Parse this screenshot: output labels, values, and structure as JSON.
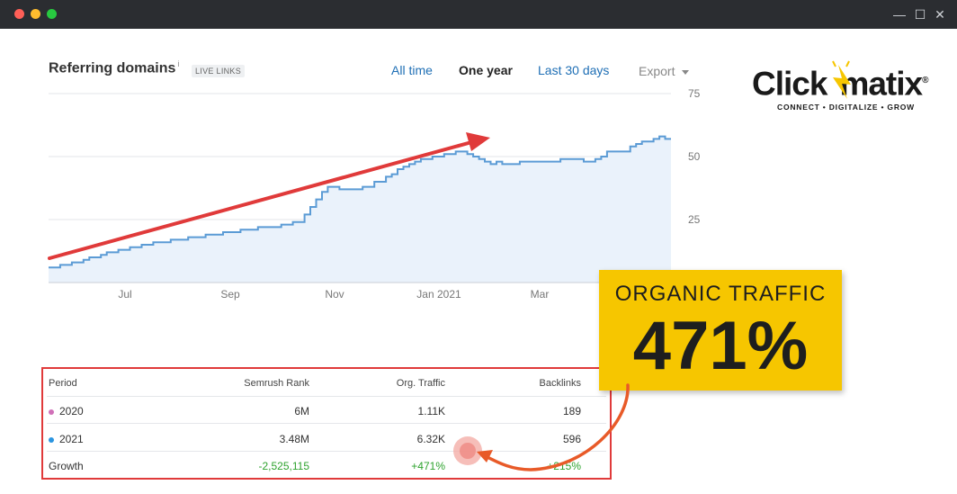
{
  "window": {
    "controls": {
      "minimize": "—",
      "maximize": "☐",
      "close": "✕"
    }
  },
  "card": {
    "title": "Referring domains",
    "info_mark": "i",
    "badge": "LIVE LINKS",
    "ranges": [
      {
        "label": "All time",
        "active": false
      },
      {
        "label": "One year",
        "active": true
      },
      {
        "label": "Last 30 days",
        "active": false
      }
    ],
    "export_label": "Export"
  },
  "logo": {
    "word_left": "Click",
    "word_right": "matix",
    "reg": "®",
    "tagline": "CONNECT • DIGITALIZE • GROW"
  },
  "highlight": {
    "label": "ORGANIC TRAFFIC",
    "value": "471%"
  },
  "colors": {
    "line": "#5b9bd5",
    "area": "#eaf2fb",
    "arrow": "#e03a3a",
    "highlight_bg": "#f6c600",
    "growth": "#2fa32f"
  },
  "chart_data": {
    "type": "area",
    "title": "Referring domains",
    "x_tick_labels": [
      "Jul",
      "Sep",
      "Nov",
      "Jan 2021",
      "Mar"
    ],
    "y_tick_labels": [
      "75",
      "50",
      "25"
    ],
    "ylim": [
      0,
      75
    ],
    "grid": true,
    "series": [
      {
        "values": [
          6,
          6,
          7,
          7,
          8,
          8,
          9,
          10,
          10,
          11,
          12,
          12,
          13,
          13,
          14,
          14,
          15,
          15,
          16,
          16,
          16,
          17,
          17,
          17,
          18,
          18,
          18,
          19,
          19,
          19,
          20,
          20,
          20,
          21,
          21,
          21,
          22,
          22,
          22,
          22,
          23,
          23,
          24,
          24,
          27,
          30,
          33,
          36,
          38,
          38,
          37,
          37,
          37,
          37,
          38,
          38,
          40,
          40,
          42,
          43,
          45,
          46,
          47,
          48,
          49,
          49,
          50,
          50,
          51,
          51,
          52,
          52,
          51,
          50,
          49,
          48,
          47,
          48,
          47,
          47,
          47,
          48,
          48,
          48,
          48,
          48,
          48,
          48,
          49,
          49,
          49,
          49,
          48,
          48,
          49,
          50,
          52,
          52,
          52,
          52,
          54,
          55,
          56,
          56,
          57,
          58,
          57,
          57
        ]
      }
    ]
  },
  "table": {
    "headers": [
      "Period",
      "Semrush Rank",
      "Org. Traffic",
      "Backlinks"
    ],
    "rows": [
      {
        "period": "2020",
        "rank": "6M",
        "traffic": "1.11K",
        "backlinks": "189",
        "dot": "#d070b8"
      },
      {
        "period": "2021",
        "rank": "3.48M",
        "traffic": "6.32K",
        "backlinks": "596",
        "dot": "#2b95e0"
      },
      {
        "period": "Growth",
        "rank": "-2,525,115",
        "traffic": "+471%",
        "backlinks": "+215%"
      }
    ]
  }
}
